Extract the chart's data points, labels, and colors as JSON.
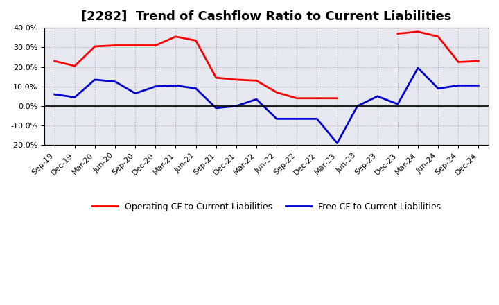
{
  "title": "[2282]  Trend of Cashflow Ratio to Current Liabilities",
  "x_labels": [
    "Sep-19",
    "Dec-19",
    "Mar-20",
    "Jun-20",
    "Sep-20",
    "Dec-20",
    "Mar-21",
    "Jun-21",
    "Sep-21",
    "Dec-21",
    "Mar-22",
    "Jun-22",
    "Sep-22",
    "Dec-22",
    "Mar-23",
    "Jun-23",
    "Sep-23",
    "Dec-23",
    "Mar-24",
    "Jun-24",
    "Sep-24",
    "Dec-24"
  ],
  "operating_cf": [
    0.23,
    0.205,
    0.305,
    0.31,
    0.31,
    0.31,
    0.355,
    0.335,
    0.145,
    0.135,
    0.13,
    0.07,
    0.04,
    0.04,
    0.04,
    null,
    null,
    0.37,
    0.38,
    0.355,
    0.225,
    0.23
  ],
  "free_cf": [
    0.06,
    0.045,
    0.135,
    0.125,
    0.065,
    0.1,
    0.105,
    0.09,
    -0.01,
    0.0,
    0.035,
    -0.065,
    -0.065,
    -0.065,
    -0.19,
    0.0,
    0.05,
    0.01,
    0.195,
    0.09,
    0.105,
    0.105
  ],
  "operating_color": "#FF0000",
  "free_color": "#0000CC",
  "ylim": [
    -0.2,
    0.4
  ],
  "yticks": [
    -0.2,
    -0.1,
    0.0,
    0.1,
    0.2,
    0.3,
    0.4
  ],
  "legend_labels": [
    "Operating CF to Current Liabilities",
    "Free CF to Current Liabilities"
  ],
  "plot_bg_color": "#E8E8F0",
  "figure_bg_color": "#FFFFFF",
  "grid_color": "#AAAAAA",
  "title_fontsize": 13,
  "tick_fontsize": 8,
  "legend_fontsize": 9
}
